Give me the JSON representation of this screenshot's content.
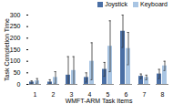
{
  "chart_data": {
    "type": "bar",
    "x_label": "WMFT-ARM Task Items",
    "y_label": "Task Completion Time",
    "categories": [
      "1",
      "2",
      "3",
      "4",
      "5",
      "6",
      "7",
      "8"
    ],
    "series": [
      {
        "name": "Joystick",
        "color": "#4a6fa5",
        "values": [
          10,
          10,
          40,
          30,
          65,
          230,
          35,
          45
        ],
        "errors": [
          5,
          10,
          80,
          20,
          30,
          70,
          10,
          20
        ]
      },
      {
        "name": "Keyboard",
        "color": "#a9c5e3",
        "values": [
          15,
          30,
          60,
          100,
          165,
          155,
          30,
          80
        ],
        "errors": [
          10,
          25,
          60,
          80,
          110,
          70,
          10,
          20
        ]
      }
    ],
    "ylim": [
      0,
      300
    ],
    "yticks": [
      0,
      50,
      100,
      150,
      200,
      250,
      300
    ],
    "grid": false,
    "legend": "top"
  }
}
